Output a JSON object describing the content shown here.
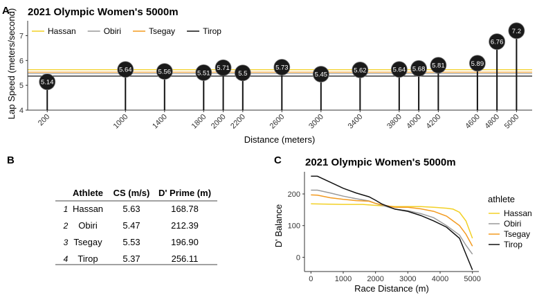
{
  "panel_labels": {
    "a": "A",
    "b": "B",
    "c": "C"
  },
  "colors": {
    "Hassan": "#f2d024",
    "Obiri": "#999999",
    "Tsegay": "#f39a1f",
    "Tirop": "#111111",
    "marker": "#1a1a1a",
    "marker_text": "#ffffff"
  },
  "chart_data": [
    {
      "type": "lollipop",
      "title": "2021 Olympic Women's 5000m",
      "xlabel": "Distance (meters)",
      "ylabel": "Lap Speed (meters/second)",
      "ylim": [
        4,
        7.6
      ],
      "yticks": [
        4,
        5,
        6,
        7
      ],
      "xlim": [
        0,
        5160
      ],
      "x": [
        200,
        1000,
        1400,
        1800,
        2000,
        2200,
        2600,
        3000,
        3400,
        3800,
        4000,
        4200,
        4600,
        4800,
        5000
      ],
      "values": [
        5.14,
        5.64,
        5.56,
        5.51,
        5.71,
        5.5,
        5.73,
        5.45,
        5.62,
        5.64,
        5.68,
        5.81,
        5.89,
        6.76,
        7.2
      ],
      "labels": [
        "5.14",
        "5.64",
        "5.56",
        "5.51",
        "5.71",
        "5.5",
        "5.73",
        "5.45",
        "5.62",
        "5.64",
        "5.68",
        "5.81",
        "5.89",
        "6.76",
        "7.2"
      ],
      "hlines": [
        {
          "name": "Hassan",
          "value": 5.63
        },
        {
          "name": "Obiri",
          "value": 5.47
        },
        {
          "name": "Tsegay",
          "value": 5.53
        },
        {
          "name": "Tirop",
          "value": 5.37
        }
      ],
      "legend": [
        "Hassan",
        "Obiri",
        "Tsegay",
        "Tirop"
      ]
    },
    {
      "type": "table",
      "headers": [
        "Athlete",
        "CS (m/s)",
        "D' Prime (m)"
      ],
      "rows": [
        {
          "n": "1",
          "athlete": "Hassan",
          "cs": "5.63",
          "dprime": "168.78"
        },
        {
          "n": "2",
          "athlete": "Obiri",
          "cs": "5.47",
          "dprime": "212.39"
        },
        {
          "n": "3",
          "athlete": "Tsegay",
          "cs": "5.53",
          "dprime": "196.90"
        },
        {
          "n": "4",
          "athlete": "Tirop",
          "cs": "5.37",
          "dprime": "256.11"
        }
      ]
    },
    {
      "type": "line",
      "title": "2021 Olympic Women's 5000m",
      "xlabel": "Race Distance (m)",
      "ylabel": "D' Balance",
      "xlim": [
        -200,
        5200
      ],
      "ylim": [
        -45,
        270
      ],
      "xticks": [
        0,
        1000,
        2000,
        3000,
        4000,
        5000
      ],
      "yticks": [
        0,
        100,
        200
      ],
      "legend_title": "athlete",
      "series": [
        {
          "name": "Hassan",
          "x": [
            0,
            400,
            1000,
            1600,
            2000,
            2600,
            3000,
            3400,
            3800,
            4200,
            4400,
            4600,
            4800,
            5000
          ],
          "values": [
            169,
            168,
            167,
            167,
            164,
            160,
            160,
            160,
            158,
            155,
            152,
            142,
            115,
            60
          ]
        },
        {
          "name": "Obiri",
          "x": [
            0,
            200,
            600,
            1000,
            1400,
            1800,
            2000,
            2600,
            3000,
            3400,
            3800,
            4200,
            4600,
            4800,
            5000
          ],
          "values": [
            212,
            212,
            203,
            193,
            185,
            178,
            170,
            152,
            147,
            138,
            125,
            100,
            70,
            38,
            10
          ]
        },
        {
          "name": "Tsegay",
          "x": [
            0,
            200,
            600,
            1000,
            1400,
            1800,
            2000,
            2600,
            3000,
            3400,
            3800,
            4200,
            4400,
            4600,
            4800,
            5000
          ],
          "values": [
            197,
            196,
            188,
            183,
            179,
            177,
            170,
            158,
            158,
            153,
            145,
            130,
            115,
            100,
            73,
            35
          ]
        },
        {
          "name": "Tirop",
          "x": [
            0,
            200,
            600,
            1000,
            1400,
            1800,
            2000,
            2200,
            2600,
            3000,
            3400,
            3800,
            4200,
            4600,
            4800,
            5000
          ],
          "values": [
            256,
            256,
            237,
            218,
            203,
            191,
            180,
            168,
            152,
            145,
            132,
            115,
            95,
            60,
            10,
            -40
          ]
        }
      ],
      "legend": [
        "Hassan",
        "Obiri",
        "Tsegay",
        "Tirop"
      ]
    }
  ]
}
